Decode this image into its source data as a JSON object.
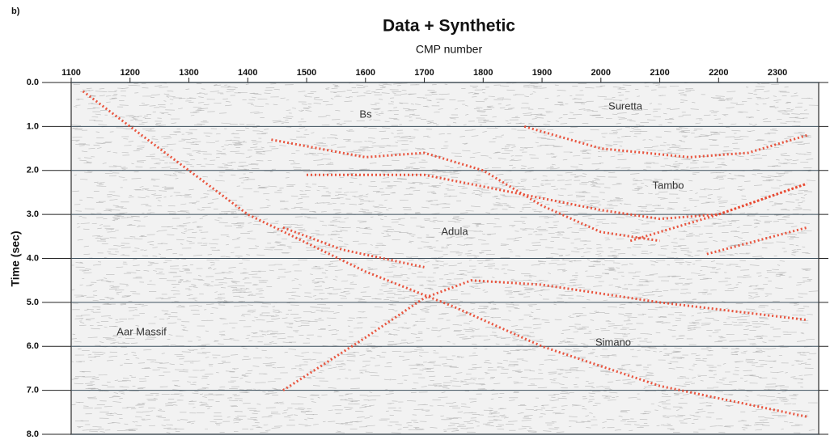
{
  "panel_label": "b)",
  "chart_data": {
    "type": "seismic",
    "title": "Data + Synthetic",
    "x_label": "CMP number",
    "y_label": "Time (sec)",
    "xlim": [
      1100,
      2370
    ],
    "ylim": [
      0,
      8
    ],
    "xticks": [
      1100,
      1200,
      1300,
      1400,
      1500,
      1600,
      1700,
      1800,
      1900,
      2000,
      2100,
      2200,
      2300
    ],
    "yticks": [
      {
        "value": 0,
        "label": "0.0"
      },
      {
        "value": 1,
        "label": "1.0"
      },
      {
        "value": 2,
        "label": "2.0"
      },
      {
        "value": 3,
        "label": "3.0"
      },
      {
        "value": 4,
        "label": "4.0"
      },
      {
        "value": 5,
        "label": "5.0"
      },
      {
        "value": 6,
        "label": "6.0"
      },
      {
        "value": 7,
        "label": "7.0"
      },
      {
        "value": 8,
        "label": "8.0"
      }
    ],
    "grid": true,
    "color": "#e8452c",
    "annotations": [
      "Bs",
      "Suretta",
      "Tambo",
      "Adula",
      "Aar Massif",
      "Simano"
    ],
    "series": [
      {
        "color": "#e8452c",
        "x": [
          1120,
          1250,
          1400,
          1600,
          1750,
          1900,
          2100,
          2350
        ],
        "values": [
          0.2,
          1.5,
          3.0,
          4.3,
          5.1,
          6.0,
          6.9,
          7.6
        ]
      },
      {
        "color": "#e8452c",
        "x": [
          1460,
          1600,
          1700,
          1780,
          1900,
          2100,
          2350
        ],
        "values": [
          7.0,
          5.8,
          4.9,
          4.5,
          4.6,
          5.0,
          5.4
        ]
      },
      {
        "color": "#e8452c",
        "x": [
          1440,
          1600,
          1700,
          1800,
          1900,
          2000,
          2100
        ],
        "values": [
          1.3,
          1.7,
          1.6,
          2.0,
          2.8,
          3.4,
          3.6
        ]
      },
      {
        "color": "#e8452c",
        "x": [
          1870,
          2000,
          2150,
          2250,
          2350
        ],
        "values": [
          1.0,
          1.5,
          1.7,
          1.6,
          1.2
        ]
      },
      {
        "color": "#e8452c",
        "x": [
          1500,
          1700,
          1850,
          2000,
          2100,
          2200,
          2350
        ],
        "values": [
          2.1,
          2.1,
          2.5,
          2.9,
          3.1,
          3.0,
          2.3
        ]
      },
      {
        "color": "#e8452c",
        "x": [
          2050,
          2200,
          2350
        ],
        "values": [
          3.6,
          3.0,
          2.3
        ]
      },
      {
        "color": "#e8452c",
        "x": [
          2180,
          2350
        ],
        "values": [
          3.9,
          3.3
        ]
      },
      {
        "color": "#e8452c",
        "x": [
          1460,
          1560,
          1700
        ],
        "values": [
          3.3,
          3.8,
          4.2
        ]
      }
    ]
  }
}
